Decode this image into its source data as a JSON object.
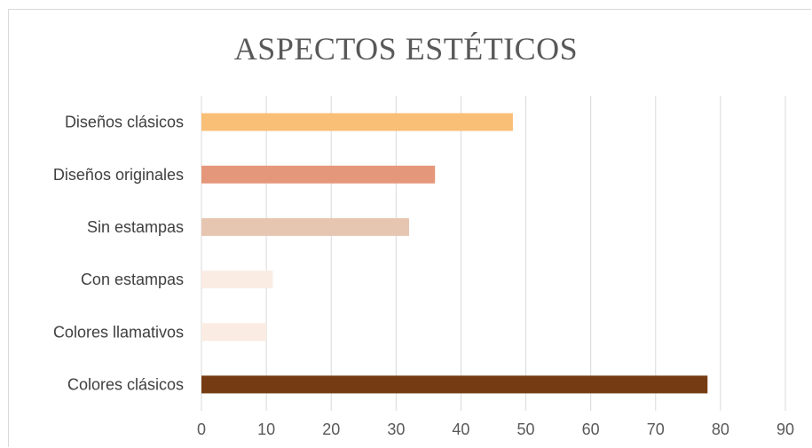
{
  "chart_data": {
    "type": "bar",
    "orientation": "horizontal",
    "title": "ASPECTOS ESTÉTICOS",
    "categories": [
      "Diseños clásicos",
      "Diseños originales",
      "Sin estampas",
      "Con estampas",
      "Colores llamativos",
      "Colores clásicos"
    ],
    "values": [
      48,
      36,
      32,
      11,
      10,
      78
    ],
    "colors": [
      "#F9BF76",
      "#E4977A",
      "#E6C5B1",
      "#FAECE3",
      "#FAECE3",
      "#753C13"
    ],
    "xlim": [
      0,
      90
    ],
    "xticks": [
      "0",
      "10",
      "20",
      "30",
      "40",
      "50",
      "60",
      "70",
      "80",
      "90"
    ],
    "grid": true,
    "legend": "none",
    "xlabel": "",
    "ylabel": ""
  }
}
